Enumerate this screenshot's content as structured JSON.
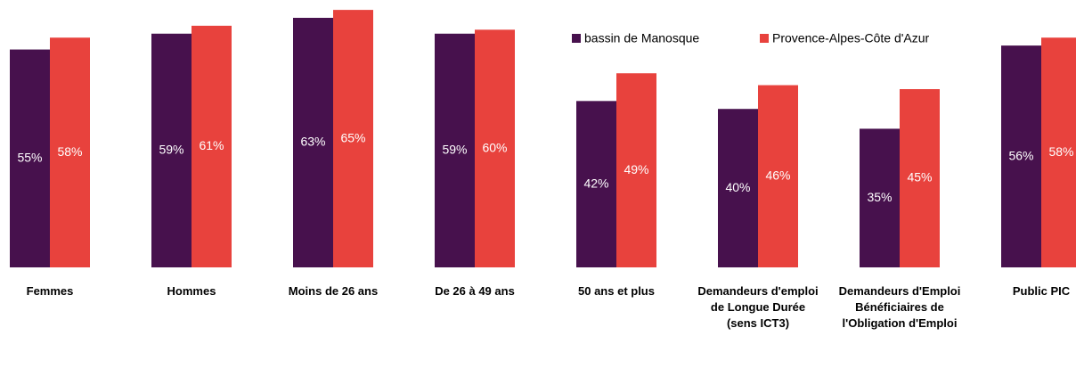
{
  "chart_data": {
    "type": "bar",
    "categories": [
      "Femmes",
      "Hommes",
      "Moins de 26 ans",
      "De 26 à 49 ans",
      "50 ans et plus",
      "Demandeurs d'emploi de Longue Durée (sens ICT3)",
      "Demandeurs d'Emploi Bénéficiaires de l'Obligation d'Emploi",
      "Public PIC"
    ],
    "series": [
      {
        "name": "bassin de Manosque",
        "color": "#47114d",
        "values": [
          55,
          59,
          63,
          59,
          42,
          40,
          35,
          56
        ],
        "value_labels": [
          "55%",
          "59%",
          "63%",
          "59%",
          "42%",
          "40%",
          "35%",
          "56%"
        ]
      },
      {
        "name": "Provence-Alpes-Côte d'Azur",
        "color": "#e8423d",
        "values": [
          58,
          61,
          65,
          60,
          49,
          46,
          45,
          58
        ],
        "value_labels": [
          "58%",
          "61%",
          "65%",
          "60%",
          "49%",
          "46%",
          "45%",
          "58%"
        ]
      }
    ],
    "ylim": [
      0,
      67.5
    ]
  }
}
